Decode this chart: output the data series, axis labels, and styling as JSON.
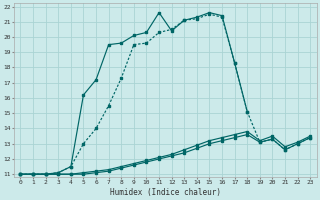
{
  "xlabel": "Humidex (Indice chaleur)",
  "bg_color": "#cceaea",
  "grid_color": "#aad4d4",
  "line_color": "#006666",
  "xlim": [
    -0.5,
    23.5
  ],
  "ylim": [
    10.8,
    22.2
  ],
  "xticks": [
    0,
    1,
    2,
    3,
    4,
    5,
    6,
    7,
    8,
    9,
    10,
    11,
    12,
    13,
    14,
    15,
    16,
    17,
    18,
    19,
    20,
    21,
    22,
    23
  ],
  "yticks": [
    11,
    12,
    13,
    14,
    15,
    16,
    17,
    18,
    19,
    20,
    21,
    22
  ],
  "curve_main_x": [
    0,
    1,
    2,
    3,
    4,
    5,
    6,
    7,
    8,
    9,
    10,
    11,
    12,
    13,
    14,
    15,
    16,
    17,
    18
  ],
  "curve_main_y": [
    11,
    11,
    11,
    11.1,
    11.5,
    16.2,
    17.2,
    19.5,
    19.6,
    20.1,
    20.3,
    21.6,
    20.4,
    21.1,
    21.3,
    21.6,
    21.4,
    18.3,
    15.1
  ],
  "curve_dotted_x": [
    0,
    1,
    2,
    3,
    4,
    5,
    6,
    7,
    8,
    9,
    10,
    11,
    12,
    13,
    14,
    15,
    16,
    17,
    18,
    19,
    20,
    21,
    22,
    23
  ],
  "curve_dotted_y": [
    11,
    11,
    11,
    11.1,
    11.5,
    13.0,
    14.0,
    15.5,
    17.3,
    19.5,
    19.6,
    20.3,
    20.5,
    21.1,
    21.2,
    21.5,
    21.3,
    18.3,
    15.1,
    13.1,
    13.3,
    12.6,
    13.0,
    13.4
  ],
  "curve_flat1_x": [
    0,
    1,
    2,
    3,
    4,
    5,
    6,
    7,
    8,
    9,
    10,
    11,
    12,
    13,
    14,
    15,
    16,
    17,
    18,
    19,
    20,
    21,
    22,
    23
  ],
  "curve_flat1_y": [
    11,
    11,
    11,
    11.0,
    11.0,
    11.0,
    11.1,
    11.2,
    11.4,
    11.6,
    11.8,
    12.0,
    12.2,
    12.4,
    12.7,
    13.0,
    13.2,
    13.4,
    13.6,
    13.1,
    13.3,
    12.6,
    13.0,
    13.4
  ],
  "curve_flat2_x": [
    0,
    1,
    2,
    3,
    4,
    5,
    6,
    7,
    8,
    9,
    10,
    11,
    12,
    13,
    14,
    15,
    16,
    17,
    18,
    19,
    20,
    21,
    22,
    23
  ],
  "curve_flat2_y": [
    11,
    11,
    11,
    11.0,
    11.0,
    11.1,
    11.2,
    11.3,
    11.5,
    11.7,
    11.9,
    12.1,
    12.3,
    12.6,
    12.9,
    13.2,
    13.4,
    13.6,
    13.8,
    13.2,
    13.5,
    12.8,
    13.1,
    13.5
  ]
}
